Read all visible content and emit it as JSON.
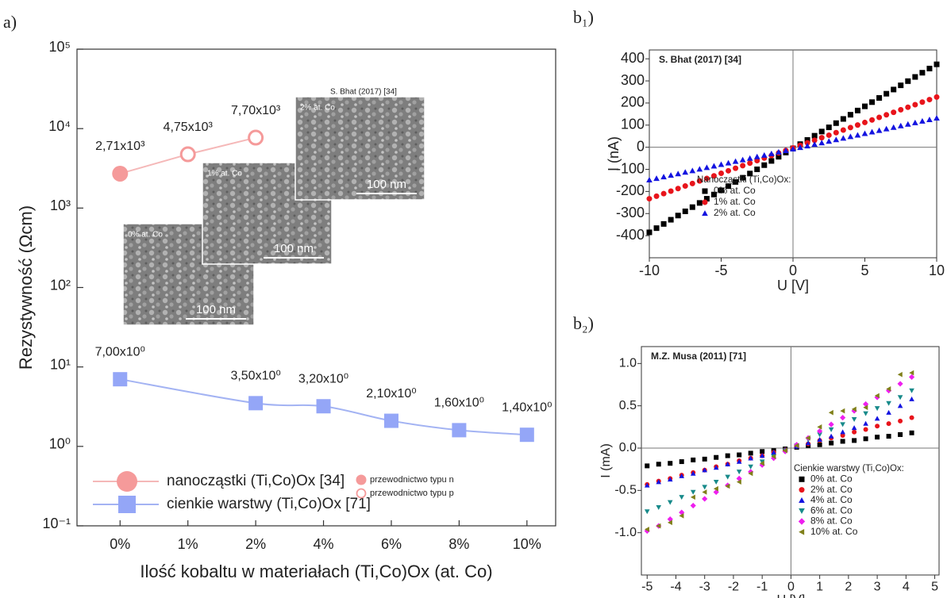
{
  "chart_data": [
    {
      "type": "line",
      "panel_label": "a)",
      "xlabel": "Ilość kobaltu w materiałach (Ti,Co)Ox (at. Co)",
      "ylabel": "Rezystywność (Ωcm)",
      "log_y": true,
      "categories": [
        "0%",
        "1%",
        "2%",
        "4%",
        "6%",
        "8%",
        "10%"
      ],
      "ylim": [
        0.1,
        100000
      ],
      "yticks": [
        {
          "value": 0.1,
          "label": "10⁻¹"
        },
        {
          "value": 1,
          "label": "10⁰"
        },
        {
          "value": 10,
          "label": "10¹"
        },
        {
          "value": 100,
          "label": "10²"
        },
        {
          "value": 1000,
          "label": "10³"
        },
        {
          "value": 10000,
          "label": "10⁴"
        },
        {
          "value": 100000,
          "label": "10⁵"
        }
      ],
      "series": [
        {
          "name": "nanocząstki (Ti,Co)Ox [34]",
          "color": "#f59a9a",
          "line_color": "#f5b8b8",
          "marker": "circle",
          "marker_fill": [
            "filled",
            "open",
            "open",
            null,
            null,
            null,
            null
          ],
          "values": [
            2710,
            4750,
            7700,
            null,
            null,
            null,
            null
          ],
          "value_labels": [
            "2,71x10³",
            "4,75x10³",
            "7,70x10³",
            null,
            null,
            null,
            null
          ]
        },
        {
          "name": "cienkie warstwy (Ti,Co)Ox [71]",
          "color": "#94a6f7",
          "line_color": "#a3b3f3",
          "marker": "square",
          "smooth": true,
          "values": [
            7,
            null,
            3.5,
            3.2,
            2.1,
            1.6,
            1.4
          ],
          "value_labels": [
            "7,00x10⁰",
            null,
            "3,50x10⁰",
            "3,20x10⁰",
            "2,10x10⁰",
            "1,60x10⁰",
            "1,40x10⁰"
          ]
        }
      ],
      "legend": "lower left",
      "marker_legend": [
        {
          "label": "przewodnictwo typu n",
          "fill": "filled"
        },
        {
          "label": "przewodnictwo typu p",
          "fill": "open"
        }
      ],
      "inset_source": "S. Bhat (2017) [34]",
      "insets": [
        {
          "label": "0% at. Co",
          "scale_bar": "100 nm"
        },
        {
          "label": "1% at. Co",
          "scale_bar": "100 nm"
        },
        {
          "label": "2% at. Co",
          "scale_bar": "100 nm"
        }
      ]
    },
    {
      "type": "scatter",
      "panel_label": "b₁)",
      "annotation": "S. Bhat (2017) [34]",
      "xlabel": "U [V]",
      "ylabel": "I (nA)",
      "zero_lines": true,
      "xlim": [
        -10,
        10
      ],
      "ylim": [
        -500,
        440
      ],
      "xticks": [
        -10,
        -5,
        0,
        5,
        10
      ],
      "yticks": [
        -400,
        -300,
        -200,
        -100,
        0,
        100,
        200,
        300,
        400
      ],
      "legend": "lower right",
      "legend_title": "Nanocząstki (Ti,Co)Ox:",
      "x": [
        -10,
        -9.5,
        -9,
        -8.5,
        -8,
        -7.5,
        -7,
        -6.5,
        -6,
        -5.5,
        -5,
        -4.5,
        -4,
        -3.5,
        -3,
        -2.5,
        -2,
        -1.5,
        -1,
        -0.5,
        0,
        0.5,
        1,
        1.5,
        2,
        2.5,
        3,
        3.5,
        4,
        4.5,
        5,
        5.5,
        6,
        6.5,
        7,
        7.5,
        8,
        8.5,
        9,
        9.5,
        10
      ],
      "series": [
        {
          "name": "0% at. Co",
          "color": "#000000",
          "marker": "square",
          "values": [
            -385,
            -366,
            -347,
            -328,
            -309,
            -290,
            -271,
            -252,
            -233,
            -214,
            -195,
            -176,
            -157,
            -138,
            -119,
            -100,
            -81,
            -62,
            -43,
            -24,
            -5,
            14,
            33,
            52,
            71,
            90,
            109,
            128,
            147,
            166,
            185,
            204,
            223,
            242,
            261,
            280,
            299,
            318,
            337,
            356,
            375
          ]
        },
        {
          "name": "1% at. Co",
          "color": "#e8141b",
          "marker": "circle",
          "values": [
            -233,
            -221.5,
            -210,
            -198.5,
            -187,
            -175.5,
            -164,
            -152.5,
            -141,
            -129.5,
            -118,
            -106.5,
            -95,
            -83.5,
            -72,
            -60.5,
            -49,
            -37.5,
            -26,
            -14.5,
            -3,
            8.5,
            20,
            31.5,
            43,
            54.5,
            66,
            77.5,
            89,
            100.5,
            112,
            123.5,
            135,
            146.5,
            158,
            169.5,
            181,
            192.5,
            204,
            215.5,
            227
          ]
        },
        {
          "name": "2% at. Co",
          "color": "#1414e0",
          "marker": "triangle",
          "values": [
            -148,
            -141,
            -134,
            -127,
            -120,
            -113,
            -106,
            -99,
            -92,
            -85,
            -78,
            -71,
            -64,
            -57,
            -50,
            -43,
            -36,
            -29,
            -22,
            -15,
            -8,
            -1,
            6,
            13,
            20,
            27,
            34,
            41,
            48,
            55,
            62,
            69,
            76,
            83,
            90,
            97,
            104,
            111,
            118,
            125,
            132
          ]
        }
      ]
    },
    {
      "type": "scatter",
      "panel_label": "b₂)",
      "annotation": "M.Z. Musa (2011) [71]",
      "xlabel": "U [V]",
      "ylabel": "I (mA)",
      "zero_lines": true,
      "xlim": [
        -5.2,
        5.15
      ],
      "ylim": [
        -1.5,
        1.2
      ],
      "xticks": [
        -5,
        -4,
        -3,
        -2,
        -1,
        0,
        1,
        2,
        3,
        4,
        5
      ],
      "yticks": [
        {
          "value": -1,
          "label": "-1.0"
        },
        -0.5,
        {
          "value": 0,
          "label": "0.0"
        },
        0.5,
        {
          "value": 1,
          "label": "1.0"
        }
      ],
      "legend": "lower right",
      "legend_title": "Cienkie warstwy (Ti,Co)Ox:",
      "x": [
        -5,
        -4.6,
        -4.2,
        -3.8,
        -3.4,
        -3,
        -2.6,
        -2.2,
        -1.8,
        -1.4,
        -1,
        -0.6,
        -0.2,
        0.2,
        0.6,
        1,
        1.4,
        1.8,
        2.2,
        2.6,
        3,
        3.4,
        3.8,
        4.2
      ],
      "series": [
        {
          "name": "0% at. Co",
          "color": "#000000",
          "marker": "square",
          "values": [
            -0.21,
            -0.19,
            -0.18,
            -0.16,
            -0.14,
            -0.13,
            -0.11,
            -0.09,
            -0.08,
            -0.06,
            -0.04,
            -0.03,
            -0.01,
            0.01,
            0.03,
            0.04,
            0.06,
            0.08,
            0.09,
            0.11,
            0.13,
            0.14,
            0.16,
            0.18
          ]
        },
        {
          "name": "2% at. Co",
          "color": "#e8141b",
          "marker": "circle",
          "values": [
            -0.43,
            -0.39,
            -0.36,
            -0.32,
            -0.29,
            -0.26,
            -0.22,
            -0.19,
            -0.15,
            -0.12,
            -0.09,
            -0.05,
            -0.02,
            0.02,
            0.05,
            0.09,
            0.12,
            0.15,
            0.19,
            0.22,
            0.26,
            0.29,
            0.32,
            0.36
          ]
        },
        {
          "name": "4% at. Co",
          "color": "#1414e0",
          "marker": "triangle",
          "values": [
            -0.44,
            -0.4,
            -0.37,
            -0.33,
            -0.3,
            -0.26,
            -0.23,
            -0.19,
            -0.16,
            -0.12,
            -0.09,
            -0.05,
            -0.02,
            0.02,
            0.06,
            0.1,
            0.14,
            0.19,
            0.24,
            0.29,
            0.35,
            0.42,
            0.5,
            0.58
          ]
        },
        {
          "name": "6% at. Co",
          "color": "#178a8a",
          "marker": "triangle-down",
          "values": [
            -0.75,
            -0.7,
            -0.64,
            -0.58,
            -0.52,
            -0.46,
            -0.4,
            -0.34,
            -0.28,
            -0.22,
            -0.16,
            -0.1,
            -0.03,
            0.03,
            0.1,
            0.16,
            0.22,
            0.28,
            0.34,
            0.41,
            0.47,
            0.53,
            0.6,
            0.68
          ]
        },
        {
          "name": "8% at. Co",
          "color": "#ee1fee",
          "marker": "diamond",
          "values": [
            -0.98,
            -0.92,
            -0.84,
            -0.76,
            -0.68,
            -0.6,
            -0.52,
            -0.44,
            -0.36,
            -0.28,
            -0.2,
            -0.12,
            -0.04,
            0.04,
            0.12,
            0.2,
            0.28,
            0.36,
            0.44,
            0.52,
            0.6,
            0.68,
            0.76,
            0.84
          ]
        },
        {
          "name": "10% at. Co",
          "color": "#80801a",
          "marker": "triangle-left",
          "values": [
            -0.96,
            -0.92,
            -0.88,
            -0.8,
            -0.58,
            -0.52,
            -0.48,
            -0.45,
            -0.4,
            -0.3,
            -0.18,
            -0.1,
            -0.03,
            0.03,
            0.12,
            0.25,
            0.42,
            0.44,
            0.46,
            0.48,
            0.62,
            0.7,
            0.87,
            0.89
          ]
        }
      ]
    }
  ]
}
